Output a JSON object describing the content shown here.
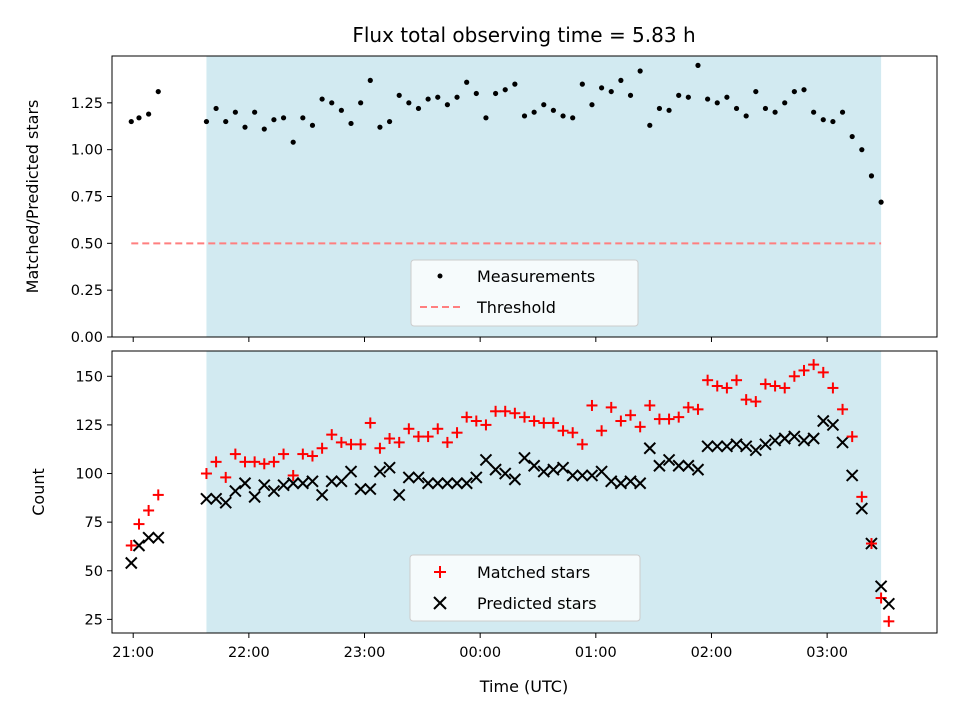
{
  "title": "Flux total observing time = 5.83 h",
  "chart_data": [
    {
      "type": "scatter",
      "title": "Flux total observing time = 5.83 h",
      "xlabel": "",
      "ylabel": "Matched/Predicted stars",
      "xlim": [
        "20:49",
        "03:57"
      ],
      "ylim": [
        0.0,
        1.5
      ],
      "yticks": [
        "0.00",
        "0.25",
        "0.50",
        "0.75",
        "1.00",
        "1.25"
      ],
      "shaded_interval": [
        "21:38",
        "03:28"
      ],
      "shaded_color": "#add8e6",
      "grid": false,
      "legend_position": "lower center",
      "series": [
        {
          "name": "Measurements",
          "marker": "dot",
          "color": "#000000",
          "x": [
            "20:59",
            "21:03",
            "21:08",
            "21:13",
            "21:38",
            "21:43",
            "21:48",
            "21:53",
            "21:58",
            "22:03",
            "22:08",
            "22:13",
            "22:18",
            "22:23",
            "22:28",
            "22:33",
            "22:38",
            "22:43",
            "22:48",
            "22:53",
            "22:58",
            "23:03",
            "23:08",
            "23:13",
            "23:18",
            "23:23",
            "23:28",
            "23:33",
            "23:38",
            "23:43",
            "23:48",
            "23:53",
            "23:58",
            "00:03",
            "00:08",
            "00:13",
            "00:18",
            "00:23",
            "00:28",
            "00:33",
            "00:38",
            "00:43",
            "00:48",
            "00:53",
            "00:58",
            "01:03",
            "01:08",
            "01:13",
            "01:18",
            "01:23",
            "01:28",
            "01:33",
            "01:38",
            "01:43",
            "01:48",
            "01:53",
            "01:58",
            "02:03",
            "02:08",
            "02:13",
            "02:18",
            "02:23",
            "02:28",
            "02:33",
            "02:38",
            "02:43",
            "02:48",
            "02:53",
            "02:58",
            "03:03",
            "03:08",
            "03:13",
            "03:18",
            "03:23",
            "03:28"
          ],
          "y": [
            1.15,
            1.17,
            1.19,
            1.31,
            1.15,
            1.22,
            1.15,
            1.2,
            1.12,
            1.2,
            1.11,
            1.16,
            1.17,
            1.04,
            1.17,
            1.13,
            1.27,
            1.25,
            1.21,
            1.14,
            1.25,
            1.37,
            1.12,
            1.15,
            1.29,
            1.25,
            1.22,
            1.27,
            1.28,
            1.24,
            1.28,
            1.36,
            1.3,
            1.17,
            1.3,
            1.32,
            1.35,
            1.18,
            1.2,
            1.24,
            1.21,
            1.18,
            1.17,
            1.35,
            1.24,
            1.33,
            1.31,
            1.37,
            1.29,
            1.42,
            1.13,
            1.22,
            1.21,
            1.29,
            1.28,
            1.45,
            1.27,
            1.25,
            1.28,
            1.22,
            1.18,
            1.31,
            1.22,
            1.2,
            1.25,
            1.31,
            1.32,
            1.2,
            1.16,
            1.15,
            1.2,
            1.07,
            1.0,
            0.86,
            0.72
          ]
        },
        {
          "name": "Threshold",
          "style": "dashed",
          "color": "#ff7f7f",
          "x": [
            "20:59",
            "03:28"
          ],
          "y": [
            0.5,
            0.5
          ]
        }
      ]
    },
    {
      "type": "scatter",
      "title": "",
      "xlabel": "Time (UTC)",
      "ylabel": "Count",
      "xlim": [
        "20:49",
        "03:57"
      ],
      "ylim": [
        18,
        163
      ],
      "yticks": [
        "25",
        "50",
        "75",
        "100",
        "125",
        "150"
      ],
      "xticks": [
        "21:00",
        "22:00",
        "23:00",
        "00:00",
        "01:00",
        "02:00",
        "03:00"
      ],
      "shaded_interval": [
        "21:38",
        "03:28"
      ],
      "shaded_color": "#add8e6",
      "grid": false,
      "legend_position": "lower center",
      "series": [
        {
          "name": "Matched stars",
          "marker": "plus",
          "color": "#ff0000",
          "x": [
            "20:59",
            "21:03",
            "21:08",
            "21:13",
            "21:38",
            "21:43",
            "21:48",
            "21:53",
            "21:58",
            "22:03",
            "22:08",
            "22:13",
            "22:18",
            "22:23",
            "22:28",
            "22:33",
            "22:38",
            "22:43",
            "22:48",
            "22:53",
            "22:58",
            "23:03",
            "23:08",
            "23:13",
            "23:18",
            "23:23",
            "23:28",
            "23:33",
            "23:38",
            "23:43",
            "23:48",
            "23:53",
            "23:58",
            "00:03",
            "00:08",
            "00:13",
            "00:18",
            "00:23",
            "00:28",
            "00:33",
            "00:38",
            "00:43",
            "00:48",
            "00:53",
            "00:58",
            "01:03",
            "01:08",
            "01:13",
            "01:18",
            "01:23",
            "01:28",
            "01:33",
            "01:38",
            "01:43",
            "01:48",
            "01:53",
            "01:58",
            "02:03",
            "02:08",
            "02:13",
            "02:18",
            "02:23",
            "02:28",
            "02:33",
            "02:38",
            "02:43",
            "02:48",
            "02:53",
            "02:58",
            "03:03",
            "03:08",
            "03:13",
            "03:18",
            "03:23",
            "03:28"
          ],
          "y": [
            63,
            74,
            81,
            89,
            100,
            106,
            98,
            110,
            106,
            106,
            105,
            106,
            110,
            99,
            110,
            109,
            113,
            120,
            116,
            115,
            115,
            126,
            113,
            118,
            116,
            123,
            119,
            119,
            123,
            116,
            121,
            129,
            127,
            125,
            132,
            132,
            131,
            129,
            127,
            126,
            126,
            122,
            121,
            115,
            135,
            122,
            134,
            127,
            130,
            124,
            135,
            128,
            128,
            129,
            134,
            133,
            148,
            145,
            144,
            148,
            138,
            137,
            146,
            145,
            144,
            150,
            153,
            156,
            152,
            144,
            133,
            119,
            88,
            64,
            36
          ]
        },
        {
          "name": "Predicted stars",
          "marker": "x",
          "color": "#000000",
          "x": [
            "20:59",
            "21:03",
            "21:08",
            "21:13",
            "21:38",
            "21:43",
            "21:48",
            "21:53",
            "21:58",
            "22:03",
            "22:08",
            "22:13",
            "22:18",
            "22:23",
            "22:28",
            "22:33",
            "22:38",
            "22:43",
            "22:48",
            "22:53",
            "22:58",
            "23:03",
            "23:08",
            "23:13",
            "23:18",
            "23:23",
            "23:28",
            "23:33",
            "23:38",
            "23:43",
            "23:48",
            "23:53",
            "23:58",
            "00:03",
            "00:08",
            "00:13",
            "00:18",
            "00:23",
            "00:28",
            "00:33",
            "00:38",
            "00:43",
            "00:48",
            "00:53",
            "00:58",
            "01:03",
            "01:08",
            "01:13",
            "01:18",
            "01:23",
            "01:28",
            "01:33",
            "01:38",
            "01:43",
            "01:48",
            "01:53",
            "01:58",
            "02:03",
            "02:08",
            "02:13",
            "02:18",
            "02:23",
            "02:28",
            "02:33",
            "02:38",
            "02:43",
            "02:48",
            "02:53",
            "02:58",
            "03:03",
            "03:08",
            "03:13",
            "03:18",
            "03:23",
            "03:28"
          ],
          "y": [
            54,
            63,
            67,
            67,
            87,
            87,
            85,
            91,
            95,
            88,
            94,
            91,
            94,
            95,
            95,
            96,
            89,
            96,
            96,
            101,
            92,
            92,
            101,
            103,
            89,
            98,
            98,
            95,
            95,
            95,
            95,
            95,
            98,
            107,
            102,
            100,
            97,
            108,
            104,
            101,
            102,
            103,
            99,
            99,
            99,
            101,
            96,
            95,
            96,
            95,
            113,
            104,
            107,
            104,
            104,
            102,
            114,
            114,
            114,
            115,
            114,
            112,
            115,
            117,
            118,
            119,
            117,
            118,
            127,
            125,
            116,
            99,
            82,
            64,
            42
          ]
        }
      ]
    }
  ],
  "extra_points": {
    "matched_last": {
      "x": "03:32",
      "y": 24
    },
    "predicted_last": {
      "x": "03:32",
      "y": 33
    }
  }
}
